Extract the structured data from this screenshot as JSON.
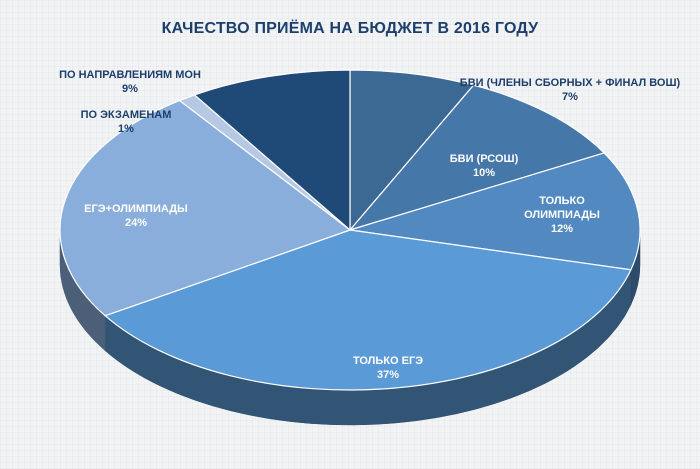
{
  "chart_data": {
    "type": "pie",
    "title": "КАЧЕСТВО ПРИЁМА НА БЮДЖЕТ В 2016 ГОДУ",
    "slices": [
      {
        "label": "БВИ (ЧЛЕНЫ СБОРНЫХ + ФИНАЛ ВОШ)",
        "value": 7,
        "value_label": "7%",
        "color": "#3c6894"
      },
      {
        "label": "БВИ (РСОШ)",
        "value": 10,
        "value_label": "10%",
        "color": "#4677a9"
      },
      {
        "label": "ТОЛЬКО ОЛИМПИАДЫ",
        "value": 12,
        "value_label": "12%",
        "color": "#5189c0"
      },
      {
        "label": "ТОЛЬКО ЕГЭ",
        "value": 37,
        "value_label": "37%",
        "color": "#5a9ad7"
      },
      {
        "label": "ЕГЭ+ОЛИМПИАДЫ",
        "value": 24,
        "value_label": "24%",
        "color": "#89aedb"
      },
      {
        "label": "ПО ЭКЗАМЕНАМ",
        "value": 1,
        "value_label": "1%",
        "color": "#b6c9e4"
      },
      {
        "label": "ПО НАПРАВЛЕНИЯМ МОН",
        "value": 9,
        "value_label": "9%",
        "color": "#1f4a77"
      }
    ],
    "legend": "none",
    "style": "3d-pie"
  }
}
